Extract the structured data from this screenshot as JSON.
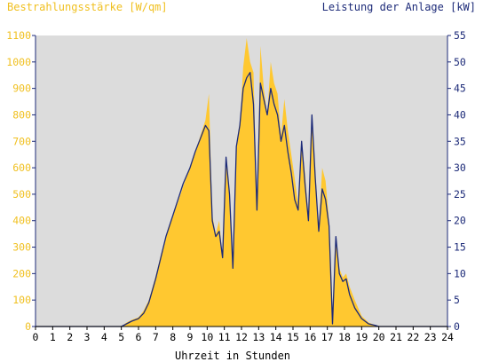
{
  "chart_data": {
    "type": "area",
    "title_left": "Bestrahlungsstärke [W/qm]",
    "title_right": "Leistung der Anlage [kW]",
    "xlabel": "Uhrzeit in Stunden",
    "xlim": [
      0,
      24
    ],
    "ylim_left": [
      0,
      1100
    ],
    "ylim_right": [
      0,
      55
    ],
    "xticks": [
      "0",
      "1",
      "2",
      "3",
      "4",
      "5",
      "6",
      "7",
      "8",
      "9",
      "10",
      "11",
      "12",
      "13",
      "14",
      "15",
      "16",
      "17",
      "18",
      "19",
      "20",
      "21",
      "22",
      "23",
      "24"
    ],
    "yticks_left": [
      "0",
      "100",
      "200",
      "300",
      "400",
      "500",
      "600",
      "700",
      "800",
      "900",
      "1000",
      "1100"
    ],
    "yticks_right": [
      "0",
      "5",
      "10",
      "15",
      "20",
      "25",
      "30",
      "35",
      "40",
      "45",
      "50",
      "55"
    ],
    "grid": false,
    "colors": {
      "plot_background": "#dcdcdc",
      "irradiance_fill": "#ffc830",
      "power_line": "#1c2a78",
      "left_axis_text": "#f0c020",
      "right_axis_text": "#1c2a78"
    },
    "series": [
      {
        "name": "Bestrahlungsstärke [W/qm]",
        "axis": "left",
        "x": [
          0,
          5.0,
          5.3,
          5.6,
          6.0,
          6.3,
          6.6,
          7.0,
          7.3,
          7.6,
          8.0,
          8.3,
          8.6,
          9.0,
          9.3,
          9.6,
          9.9,
          10.1,
          10.3,
          10.5,
          10.7,
          10.9,
          11.1,
          11.3,
          11.5,
          11.7,
          11.9,
          12.1,
          12.3,
          12.5,
          12.7,
          12.9,
          13.1,
          13.3,
          13.5,
          13.7,
          13.9,
          14.1,
          14.3,
          14.5,
          14.7,
          14.9,
          15.1,
          15.3,
          15.5,
          15.7,
          15.9,
          16.1,
          16.3,
          16.5,
          16.7,
          16.9,
          17.1,
          17.3,
          17.5,
          17.7,
          17.9,
          18.1,
          18.3,
          18.6,
          19.0,
          19.4,
          19.8,
          20.0,
          24
        ],
        "y": [
          0,
          0,
          15,
          25,
          35,
          60,
          100,
          190,
          270,
          340,
          420,
          470,
          530,
          600,
          660,
          720,
          780,
          880,
          420,
          350,
          400,
          260,
          640,
          500,
          240,
          680,
          760,
          980,
          1090,
          1000,
          960,
          470,
          1060,
          900,
          800,
          1000,
          920,
          880,
          720,
          860,
          740,
          650,
          560,
          460,
          700,
          580,
          410,
          780,
          590,
          380,
          600,
          550,
          400,
          20,
          340,
          220,
          185,
          200,
          150,
          100,
          40,
          15,
          5,
          0,
          0
        ]
      },
      {
        "name": "Leistung der Anlage [kW]",
        "axis": "right",
        "x": [
          0,
          5.0,
          5.3,
          5.6,
          6.0,
          6.3,
          6.6,
          7.0,
          7.3,
          7.6,
          8.0,
          8.3,
          8.6,
          9.0,
          9.3,
          9.6,
          9.9,
          10.1,
          10.3,
          10.5,
          10.7,
          10.9,
          11.1,
          11.3,
          11.5,
          11.7,
          11.9,
          12.1,
          12.3,
          12.5,
          12.7,
          12.9,
          13.1,
          13.3,
          13.5,
          13.7,
          13.9,
          14.1,
          14.3,
          14.5,
          14.7,
          14.9,
          15.1,
          15.3,
          15.5,
          15.7,
          15.9,
          16.1,
          16.3,
          16.5,
          16.7,
          16.9,
          17.1,
          17.3,
          17.5,
          17.7,
          17.9,
          18.1,
          18.3,
          18.6,
          19.0,
          19.4,
          19.8,
          20.0,
          24
        ],
        "y": [
          0,
          0,
          0.5,
          1.0,
          1.5,
          2.5,
          4.5,
          9.0,
          13.0,
          17.0,
          21.0,
          24.0,
          27.0,
          30.0,
          33.0,
          35.5,
          38.0,
          37.0,
          20.0,
          17.0,
          18.0,
          13.0,
          32.0,
          25.0,
          11.0,
          34.0,
          38.0,
          45.0,
          47.0,
          48.0,
          42.0,
          22.0,
          46.0,
          43.0,
          40.0,
          45.0,
          42.0,
          40.0,
          35.0,
          38.0,
          33.0,
          29.0,
          24.0,
          22.0,
          35.0,
          27.0,
          20.0,
          40.0,
          28.0,
          18.0,
          26.0,
          24.0,
          19.0,
          0.5,
          17.0,
          10.0,
          8.5,
          9.0,
          6.0,
          3.5,
          1.5,
          0.5,
          0.2,
          0,
          0
        ]
      }
    ]
  }
}
